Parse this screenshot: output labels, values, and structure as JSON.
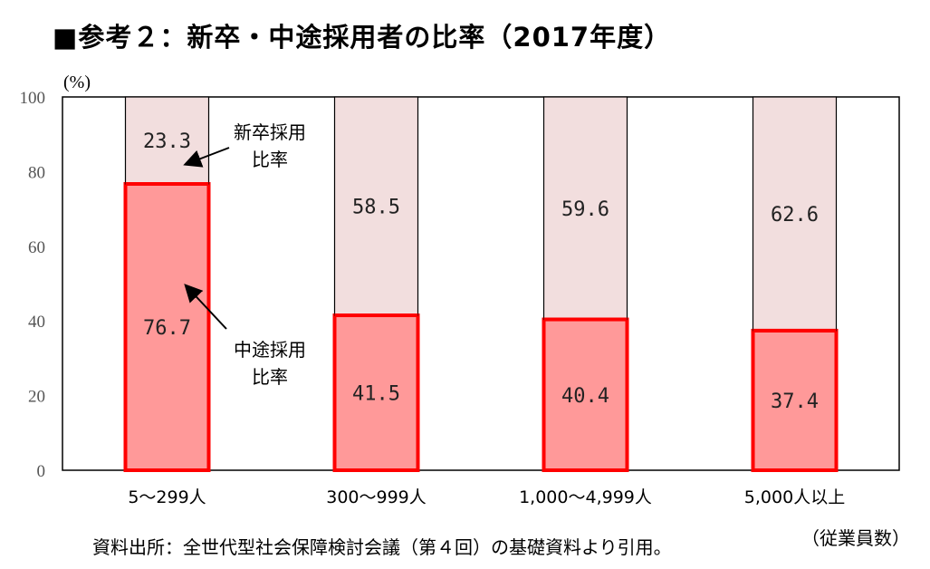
{
  "title": "■参考２：新卒・中途採用者の比率（2017年度）",
  "unit_label": "(%)",
  "source": "資料出所：全世代型社会保障検討会議（第４回）の基礎資料より引用。",
  "x_unit": "（従業員数）",
  "colors": {
    "new_grad": "#f2dede",
    "mid_career": "#ff9999",
    "mid_border": "#ff0000"
  },
  "annotations": {
    "new_grad": [
      "新卒採用",
      "比率"
    ],
    "mid_career": [
      "中途採用",
      "比率"
    ]
  },
  "chart_data": {
    "type": "bar",
    "stacked": true,
    "categories": [
      "5〜299人",
      "300〜999人",
      "1,000〜4,999人",
      "5,000人以上"
    ],
    "series": [
      {
        "name": "中途採用比率",
        "values": [
          76.7,
          41.5,
          40.4,
          37.4
        ],
        "labels": [
          "76.7",
          "41.5",
          "40.4",
          "37.4"
        ]
      },
      {
        "name": "新卒採用比率",
        "values": [
          23.3,
          58.5,
          59.6,
          62.6
        ],
        "labels": [
          "23.3",
          "58.5",
          "59.6",
          "62.6"
        ]
      }
    ],
    "ylim": [
      0,
      100
    ],
    "yticks": [
      0,
      20,
      40,
      60,
      80,
      100
    ],
    "ylabel": "(%)",
    "xlabel": "（従業員数）"
  }
}
